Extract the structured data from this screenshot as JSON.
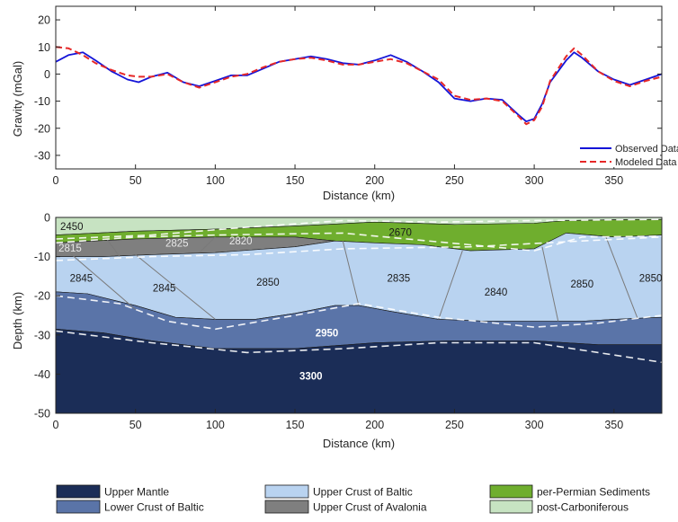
{
  "chart_data": [
    {
      "type": "line",
      "xlabel": "Distance (km)",
      "ylabel": "Gravity (mGal)",
      "xlim": [
        0,
        380
      ],
      "ylim": [
        -35,
        25
      ],
      "xticks": [
        0,
        50,
        100,
        150,
        200,
        250,
        300,
        350
      ],
      "yticks": [
        20,
        10,
        0,
        -10,
        -20,
        -30
      ],
      "legend_position": "bottom-right",
      "series": [
        {
          "name": "Observed Data",
          "color": "#1414d8",
          "style": "solid",
          "x": [
            0,
            8,
            17,
            25,
            35,
            45,
            52,
            60,
            70,
            80,
            90,
            100,
            110,
            120,
            130,
            140,
            150,
            160,
            170,
            180,
            190,
            200,
            210,
            220,
            230,
            240,
            250,
            260,
            270,
            280,
            290,
            295,
            300,
            305,
            310,
            320,
            325,
            330,
            340,
            350,
            360,
            370,
            380
          ],
          "y": [
            4.5,
            7,
            8,
            5,
            1,
            -2,
            -3,
            -1,
            0.5,
            -3,
            -4.5,
            -2.5,
            -0.5,
            -0.5,
            2,
            4.5,
            5.5,
            6.5,
            5.5,
            4,
            3.5,
            5,
            7,
            4.5,
            1,
            -3,
            -9,
            -10,
            -9,
            -9.5,
            -15,
            -17.5,
            -16.5,
            -11,
            -3,
            5,
            8,
            6,
            1,
            -2,
            -4,
            -2,
            0
          ]
        },
        {
          "name": "Modeled Data",
          "color": "#e62828",
          "style": "dashed",
          "x": [
            0,
            8,
            17,
            25,
            35,
            45,
            52,
            60,
            70,
            80,
            90,
            100,
            110,
            120,
            130,
            140,
            150,
            160,
            170,
            180,
            190,
            200,
            210,
            220,
            230,
            240,
            250,
            260,
            270,
            280,
            290,
            295,
            300,
            305,
            310,
            320,
            325,
            330,
            340,
            350,
            360,
            370,
            380
          ],
          "y": [
            10,
            9.5,
            7,
            4,
            1.5,
            -0.5,
            -1,
            -1,
            0,
            -3,
            -5,
            -3,
            -1,
            0,
            2.5,
            4.5,
            5.5,
            6,
            5,
            3.5,
            3.5,
            4.5,
            5.5,
            4,
            1,
            -2,
            -8,
            -9.5,
            -9,
            -10,
            -15.5,
            -18.5,
            -17,
            -12,
            -2.5,
            6.5,
            9.5,
            7,
            1,
            -2.5,
            -4.5,
            -2.5,
            -1
          ]
        }
      ]
    },
    {
      "type": "area",
      "xlabel": "Distance (km)",
      "ylabel": "Depth (km)",
      "xlim": [
        0,
        380
      ],
      "ylim": [
        -50,
        0
      ],
      "xticks": [
        0,
        50,
        100,
        150,
        200,
        250,
        300,
        350
      ],
      "yticks": [
        0,
        -10,
        -20,
        -30,
        -40,
        -50
      ],
      "layers": [
        {
          "name": "post-Carboniferous",
          "color": "#c7e3c2",
          "top": [
            [
              0,
              0
            ],
            [
              380,
              0
            ]
          ],
          "base": [
            [
              0,
              -4.5
            ],
            [
              50,
              -3.5
            ],
            [
              100,
              -3
            ],
            [
              150,
              -2.2
            ],
            [
              200,
              -1.2
            ],
            [
              250,
              -1.8
            ],
            [
              300,
              -1.5
            ],
            [
              320,
              -0.8
            ],
            [
              350,
              -0.6
            ],
            [
              380,
              -0.5
            ]
          ]
        },
        {
          "name": "per-Permian Sediments",
          "color": "#6fae2e",
          "top": [
            [
              0,
              -4.5
            ],
            [
              50,
              -3.5
            ],
            [
              100,
              -3
            ],
            [
              150,
              -2.2
            ],
            [
              200,
              -1.2
            ],
            [
              250,
              -1.8
            ],
            [
              300,
              -1.5
            ],
            [
              320,
              -0.8
            ],
            [
              350,
              -0.6
            ],
            [
              380,
              -0.5
            ]
          ],
          "base": [
            [
              0,
              -6.5
            ],
            [
              50,
              -5.5
            ],
            [
              100,
              -5
            ],
            [
              150,
              -5
            ],
            [
              175,
              -6
            ],
            [
              200,
              -6.5
            ],
            [
              230,
              -7
            ],
            [
              260,
              -8.5
            ],
            [
              300,
              -8
            ],
            [
              320,
              -4
            ],
            [
              350,
              -5
            ],
            [
              380,
              -4.5
            ]
          ]
        },
        {
          "name": "Upper Crust of Avalonia",
          "color": "#7f7f7f",
          "top": [
            [
              0,
              -6.5
            ],
            [
              50,
              -5.5
            ],
            [
              100,
              -5
            ],
            [
              150,
              -5
            ],
            [
              175,
              -6
            ]
          ],
          "base": [
            [
              0,
              -10
            ],
            [
              30,
              -10
            ],
            [
              60,
              -9.5
            ],
            [
              100,
              -9
            ],
            [
              150,
              -7.5
            ],
            [
              175,
              -6
            ]
          ]
        },
        {
          "name": "Upper Crust of Baltic",
          "color": "#b9d3f0",
          "top": [
            [
              0,
              -10
            ],
            [
              30,
              -10
            ],
            [
              60,
              -9.5
            ],
            [
              100,
              -9
            ],
            [
              150,
              -7.5
            ],
            [
              175,
              -6
            ],
            [
              200,
              -6.5
            ],
            [
              230,
              -7
            ],
            [
              260,
              -8.5
            ],
            [
              300,
              -8
            ],
            [
              320,
              -4
            ],
            [
              350,
              -5
            ],
            [
              380,
              -4.5
            ]
          ],
          "base": [
            [
              0,
              -19
            ],
            [
              20,
              -19.5
            ],
            [
              50,
              -22.5
            ],
            [
              75,
              -25.5
            ],
            [
              100,
              -26
            ],
            [
              125,
              -26
            ],
            [
              150,
              -24.5
            ],
            [
              175,
              -22.5
            ],
            [
              190,
              -22.5
            ],
            [
              210,
              -24
            ],
            [
              240,
              -26
            ],
            [
              270,
              -26.5
            ],
            [
              300,
              -26.5
            ],
            [
              330,
              -26.5
            ],
            [
              350,
              -26
            ],
            [
              380,
              -25.5
            ]
          ]
        },
        {
          "name": "Lower Crust of Baltic",
          "color": "#5a74a8",
          "top": [
            [
              0,
              -19
            ],
            [
              20,
              -19.5
            ],
            [
              50,
              -22.5
            ],
            [
              75,
              -25.5
            ],
            [
              100,
              -26
            ],
            [
              125,
              -26
            ],
            [
              150,
              -24.5
            ],
            [
              175,
              -22.5
            ],
            [
              190,
              -22.5
            ],
            [
              210,
              -24
            ],
            [
              240,
              -26
            ],
            [
              270,
              -26.5
            ],
            [
              300,
              -26.5
            ],
            [
              330,
              -26.5
            ],
            [
              350,
              -26
            ],
            [
              380,
              -25.5
            ]
          ],
          "base": [
            [
              0,
              -28.5
            ],
            [
              30,
              -29.5
            ],
            [
              60,
              -31.5
            ],
            [
              100,
              -33.5
            ],
            [
              150,
              -33.5
            ],
            [
              200,
              -32
            ],
            [
              250,
              -31.5
            ],
            [
              300,
              -31.5
            ],
            [
              340,
              -32.5
            ],
            [
              380,
              -32.5
            ]
          ]
        },
        {
          "name": "Upper Mantle",
          "color": "#1b2d57",
          "top": [
            [
              0,
              -28.5
            ],
            [
              30,
              -29.5
            ],
            [
              60,
              -31.5
            ],
            [
              100,
              -33.5
            ],
            [
              150,
              -33.5
            ],
            [
              200,
              -32
            ],
            [
              250,
              -31.5
            ],
            [
              300,
              -31.5
            ],
            [
              340,
              -32.5
            ],
            [
              380,
              -32.5
            ]
          ],
          "base": [
            [
              0,
              -50
            ],
            [
              380,
              -50
            ]
          ]
        }
      ],
      "block_lines": [
        [
          [
            10,
            -9.5
          ],
          [
            50,
            -23.5
          ]
        ],
        [
          [
            50,
            -9.5
          ],
          [
            100,
            -26
          ]
        ],
        [
          [
            180,
            -6
          ],
          [
            190,
            -22.5
          ]
        ],
        [
          [
            255,
            -8.5
          ],
          [
            240,
            -26
          ]
        ],
        [
          [
            305,
            -7.5
          ],
          [
            315,
            -26.5
          ]
        ],
        [
          [
            345,
            -5
          ],
          [
            365,
            -26
          ]
        ],
        [
          [
            40,
            -10
          ],
          [
            32,
            -5.5
          ]
        ],
        [
          [
            90,
            -9
          ],
          [
            100,
            -5
          ]
        ]
      ],
      "model_dashes": [
        [
          [
            0,
            -5.5
          ],
          [
            60,
            -4.5
          ],
          [
            120,
            -2.5
          ],
          [
            180,
            -0.8
          ],
          [
            240,
            -1.2
          ],
          [
            300,
            -0.8
          ],
          [
            380,
            -0.5
          ]
        ],
        [
          [
            0,
            -6.5
          ],
          [
            50,
            -5
          ],
          [
            100,
            -4.5
          ],
          [
            180,
            -4
          ],
          [
            260,
            -7
          ],
          [
            300,
            -8.5
          ],
          [
            330,
            -5
          ],
          [
            380,
            -4.8
          ]
        ],
        [
          [
            0,
            -11
          ],
          [
            60,
            -10
          ],
          [
            120,
            -9.5
          ],
          [
            180,
            -8
          ],
          [
            260,
            -7.5
          ],
          [
            330,
            -6
          ],
          [
            380,
            -5
          ]
        ],
        [
          [
            0,
            -20
          ],
          [
            40,
            -22
          ],
          [
            70,
            -26.5
          ],
          [
            100,
            -28.5
          ],
          [
            150,
            -25
          ],
          [
            190,
            -22
          ],
          [
            240,
            -25.5
          ],
          [
            300,
            -28
          ],
          [
            340,
            -27
          ],
          [
            380,
            -25
          ]
        ],
        [
          [
            0,
            -29
          ],
          [
            60,
            -32
          ],
          [
            120,
            -34.5
          ],
          [
            180,
            -33.5
          ],
          [
            240,
            -32
          ],
          [
            300,
            -32
          ],
          [
            380,
            -37
          ]
        ]
      ],
      "labels": [
        {
          "text": "2450",
          "x": 10,
          "y": -2.3,
          "color": "#1a1a1a",
          "bold": false
        },
        {
          "text": "2670",
          "x": 216,
          "y": -3.8,
          "color": "#1a1a1a",
          "bold": false
        },
        {
          "text": "2815",
          "x": 9,
          "y": -7.8,
          "color": "#e8e8e8",
          "bold": false
        },
        {
          "text": "2825",
          "x": 76,
          "y": -6.5,
          "color": "#e8e8e8",
          "bold": false
        },
        {
          "text": "2820",
          "x": 116,
          "y": -6,
          "color": "#e8e8e8",
          "bold": false
        },
        {
          "text": "2845",
          "x": 16,
          "y": -15.5,
          "color": "#1a1a1a",
          "bold": false
        },
        {
          "text": "2845",
          "x": 68,
          "y": -18,
          "color": "#1a1a1a",
          "bold": false
        },
        {
          "text": "2850",
          "x": 133,
          "y": -16.5,
          "color": "#1a1a1a",
          "bold": false
        },
        {
          "text": "2835",
          "x": 215,
          "y": -15.5,
          "color": "#1a1a1a",
          "bold": false
        },
        {
          "text": "2840",
          "x": 276,
          "y": -19,
          "color": "#1a1a1a",
          "bold": false
        },
        {
          "text": "2850",
          "x": 330,
          "y": -17,
          "color": "#1a1a1a",
          "bold": false
        },
        {
          "text": "2850",
          "x": 373,
          "y": -15.5,
          "color": "#1a1a1a",
          "bold": false
        },
        {
          "text": "2950",
          "x": 170,
          "y": -29.5,
          "color": "#ffffff",
          "bold": true
        },
        {
          "text": "3300",
          "x": 160,
          "y": -40.5,
          "color": "#ffffff",
          "bold": true
        }
      ],
      "legend": [
        {
          "label": "Upper Mantle",
          "color": "#1b2d57"
        },
        {
          "label": "Lower Crust of Baltic",
          "color": "#5a74a8"
        },
        {
          "label": "Upper Crust of Baltic",
          "color": "#b9d3f0"
        },
        {
          "label": "Upper Crust of Avalonia",
          "color": "#7f7f7f"
        },
        {
          "label": "per-Permian Sediments",
          "color": "#6fae2e"
        },
        {
          "label": "post-Carboniferous",
          "color": "#c7e3c2"
        }
      ]
    }
  ]
}
